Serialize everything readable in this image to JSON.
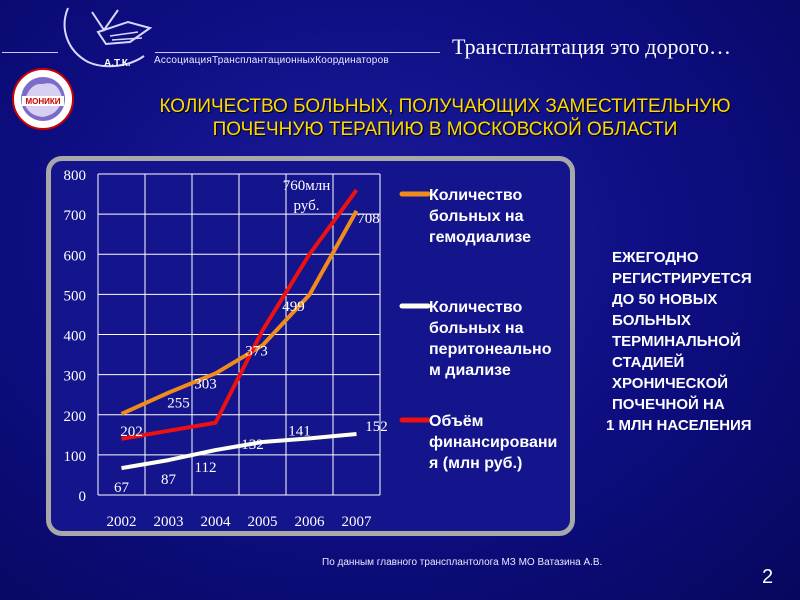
{
  "header": {
    "logo_text": "А.Т.К.",
    "association": "АссоциацияТрансплантационныхКоординаторов",
    "title": "Трансплантация это дорого…"
  },
  "moniki_logo": {
    "text": "МОНИКИ"
  },
  "main_title": {
    "line1": "КОЛИЧЕСТВО БОЛЬНЫХ, ПОЛУЧАЮЩИХ ЗАМЕСТИТЕЛЬНУЮ",
    "line2": "ПОЧЕЧНУЮ ТЕРАПИЮ В МОСКОВСКОЙ ОБЛАСТИ"
  },
  "chart_data": {
    "type": "line",
    "categories": [
      "2002",
      "2003",
      "2004",
      "2005",
      "2006",
      "2007"
    ],
    "ylim": [
      0,
      800
    ],
    "yticks": [
      "0",
      "100",
      "200",
      "300",
      "400",
      "500",
      "600",
      "700",
      "800"
    ],
    "grid": true,
    "legend_position": "right",
    "series": [
      {
        "name": "Количество больных на гемодиализе",
        "color": "#f08c1c",
        "values": [
          202,
          255,
          303,
          373,
          499,
          708
        ],
        "labels": [
          "202",
          "255",
          "303",
          "373",
          "499",
          "708"
        ]
      },
      {
        "name": "Количество больных на перитонеальном диализе",
        "color": "#fffff0",
        "values": [
          67,
          87,
          112,
          132,
          141,
          152
        ],
        "labels": [
          "67",
          "87",
          "112",
          "132",
          "141",
          "152"
        ]
      },
      {
        "name": "Объём финансирования (млн руб.)",
        "color": "#ee1111",
        "values": [
          140,
          160,
          180,
          410,
          600,
          760
        ],
        "labels": [
          "",
          "",
          "",
          "",
          "",
          "760млн руб."
        ]
      }
    ],
    "legend_lines": [
      [
        "Количество",
        "больных на",
        "гемодиализе"
      ],
      [
        "Количество",
        "больных на",
        "перитонеально",
        "м диализе"
      ],
      [
        "Объём",
        "финансировани",
        "я (млн руб.)"
      ]
    ]
  },
  "side_note": {
    "lines": [
      "ЕЖЕГОДНО",
      "РЕГИСТРИРУЕТСЯ",
      "ДО 50  НОВЫХ",
      "БОЛЬНЫХ",
      "ТЕРМИНАЛЬНОЙ",
      "СТАДИЕЙ",
      "ХРОНИЧЕСКОЙ",
      "ПОЧЕЧНОЙ  НА",
      "1 МЛН НАСЕЛЕНИЯ"
    ]
  },
  "footer": {
    "source": "По данным  главного трансплантолога МЗ  МО Ватазина А.В.",
    "page_number": "2"
  }
}
